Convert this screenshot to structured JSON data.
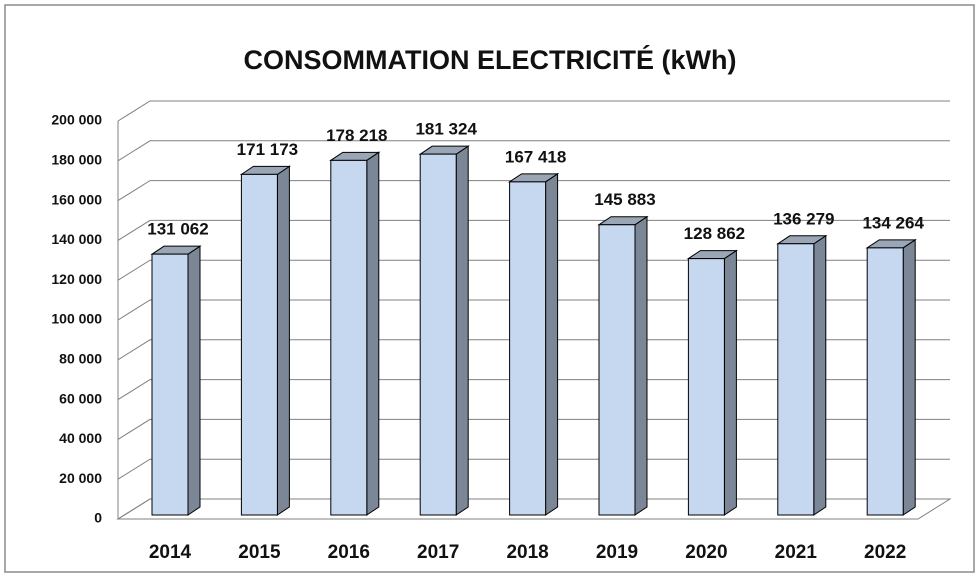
{
  "chart_data": {
    "type": "bar3d",
    "title": "CONSOMMATION ELECTRICITÉ (kWh)",
    "categories": [
      "2014",
      "2015",
      "2016",
      "2017",
      "2018",
      "2019",
      "2020",
      "2021",
      "2022"
    ],
    "values": [
      131062,
      171173,
      178218,
      181324,
      167418,
      145883,
      128862,
      136279,
      134264
    ],
    "value_labels": [
      "131 062",
      "171 173",
      "178 218",
      "181 324",
      "167 418",
      "145 883",
      "128 862",
      "136 279",
      "134 264"
    ],
    "color": "#c6d7f0",
    "ylim": [
      0,
      200000
    ],
    "yticks": [
      0,
      {
        "value": 20000,
        "label": "20 000"
      },
      {
        "value": 40000,
        "label": "40 000"
      },
      {
        "value": 60000,
        "label": "60 000"
      },
      {
        "value": 80000,
        "label": "80 000"
      },
      {
        "value": 100000,
        "label": "100 000"
      },
      {
        "value": 120000,
        "label": "120 000"
      },
      {
        "value": 140000,
        "label": "140 000"
      },
      {
        "value": 160000,
        "label": "160 000"
      },
      {
        "value": 180000,
        "label": "180 000"
      },
      {
        "value": 200000,
        "label": "200 000"
      }
    ],
    "grid": true
  }
}
